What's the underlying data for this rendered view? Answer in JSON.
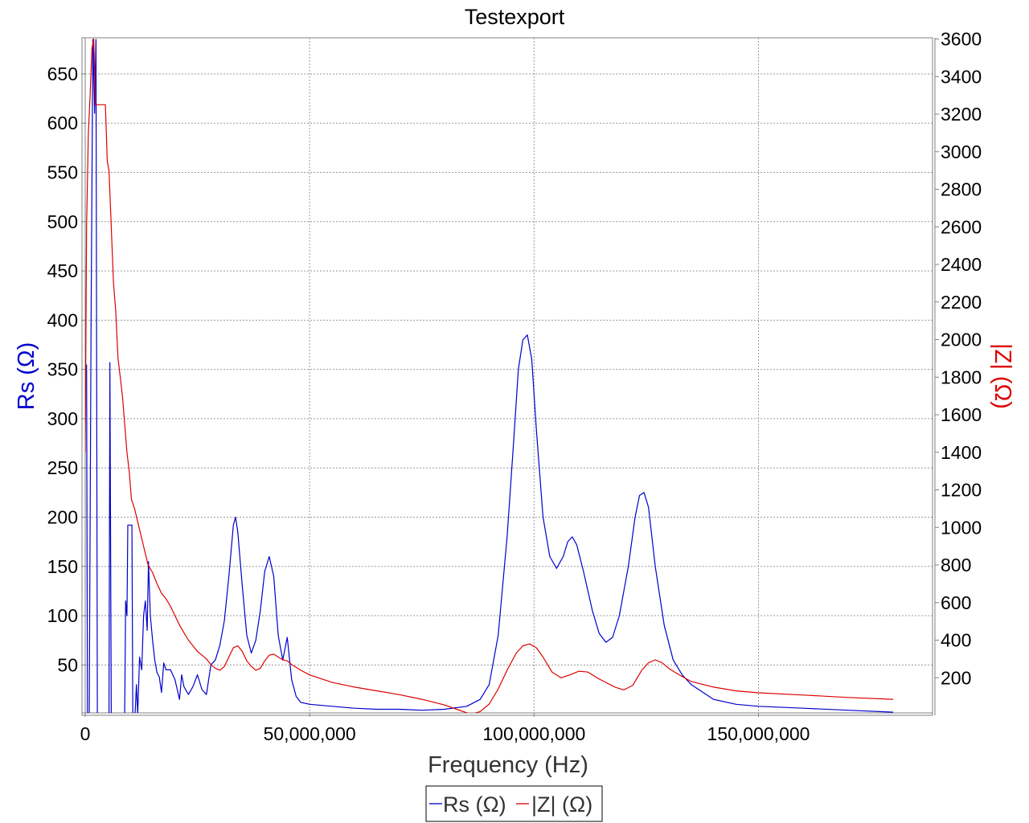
{
  "chart_data": {
    "type": "line",
    "title": "Testexport",
    "xlabel": "Frequency (Hz)",
    "ylabel_left": "Rs (Ω)",
    "ylabel_right": "|Z| (Ω)",
    "xlim": [
      0,
      190000000
    ],
    "ylim_left": [
      0,
      685
    ],
    "ylim_right": [
      0,
      3600
    ],
    "grid": true,
    "legend_position": "bottom-center",
    "x_ticks": [
      0,
      50000000,
      100000000,
      150000000
    ],
    "x_tick_labels": [
      "0",
      "50,000,000",
      "100,000,000",
      "150,000,000"
    ],
    "y_left_ticks": [
      50,
      100,
      150,
      200,
      250,
      300,
      350,
      400,
      450,
      500,
      550,
      600,
      650
    ],
    "y_left_tick_labels": [
      "50",
      "100",
      "150",
      "200",
      "250",
      "300",
      "350",
      "400",
      "450",
      "500",
      "550",
      "600",
      "650"
    ],
    "y_right_ticks": [
      200,
      400,
      600,
      800,
      1000,
      1200,
      1400,
      1600,
      1800,
      2000,
      2200,
      2400,
      2600,
      2800,
      3000,
      3200,
      3400,
      3600
    ],
    "y_right_tick_labels": [
      "200",
      "400",
      "600",
      "800",
      "1000",
      "1200",
      "1400",
      "1600",
      "1800",
      "2000",
      "2200",
      "2400",
      "2600",
      "2800",
      "3000",
      "3200",
      "3400",
      "3600"
    ],
    "series": [
      {
        "name": "Rs (Ω)",
        "axis": "left",
        "color": "#0000cc",
        "points": [
          [
            300000,
            355
          ],
          [
            500000,
            0
          ],
          [
            900000,
            0
          ],
          [
            1300000,
            400
          ],
          [
            1700000,
            685
          ],
          [
            2100000,
            610
          ],
          [
            2400000,
            685
          ],
          [
            2700000,
            0
          ],
          [
            3300000,
            0
          ],
          [
            4500000,
            0
          ],
          [
            5300000,
            0
          ],
          [
            5500000,
            357
          ],
          [
            5800000,
            0
          ],
          [
            8800000,
            0
          ],
          [
            9000000,
            115
          ],
          [
            9300000,
            100
          ],
          [
            9500000,
            192
          ],
          [
            10400000,
            192
          ],
          [
            10600000,
            0
          ],
          [
            11100000,
            0
          ],
          [
            11400000,
            30
          ],
          [
            11700000,
            0
          ],
          [
            12100000,
            58
          ],
          [
            12600000,
            45
          ],
          [
            13000000,
            100
          ],
          [
            13400000,
            115
          ],
          [
            13800000,
            85
          ],
          [
            14100000,
            155
          ],
          [
            14500000,
            100
          ],
          [
            15000000,
            75
          ],
          [
            15500000,
            55
          ],
          [
            16000000,
            42
          ],
          [
            16500000,
            38
          ],
          [
            17000000,
            22
          ],
          [
            17500000,
            52
          ],
          [
            18000000,
            45
          ],
          [
            19000000,
            45
          ],
          [
            20000000,
            35
          ],
          [
            20500000,
            25
          ],
          [
            21000000,
            15
          ],
          [
            21500000,
            40
          ],
          [
            22000000,
            28
          ],
          [
            23000000,
            20
          ],
          [
            24000000,
            28
          ],
          [
            25000000,
            40
          ],
          [
            26000000,
            25
          ],
          [
            27000000,
            20
          ],
          [
            28000000,
            50
          ],
          [
            29000000,
            55
          ],
          [
            30000000,
            70
          ],
          [
            31000000,
            95
          ],
          [
            32000000,
            140
          ],
          [
            33000000,
            192
          ],
          [
            33500000,
            200
          ],
          [
            34000000,
            185
          ],
          [
            35000000,
            130
          ],
          [
            36000000,
            80
          ],
          [
            37000000,
            62
          ],
          [
            38000000,
            75
          ],
          [
            39000000,
            105
          ],
          [
            40000000,
            145
          ],
          [
            41000000,
            160
          ],
          [
            42000000,
            140
          ],
          [
            43000000,
            80
          ],
          [
            44000000,
            55
          ],
          [
            45000000,
            78
          ],
          [
            46000000,
            35
          ],
          [
            47000000,
            18
          ],
          [
            48000000,
            12
          ],
          [
            50000000,
            10
          ],
          [
            55000000,
            8
          ],
          [
            60000000,
            6
          ],
          [
            65000000,
            5
          ],
          [
            70000000,
            5
          ],
          [
            75000000,
            4
          ],
          [
            80000000,
            5
          ],
          [
            85000000,
            8
          ],
          [
            88000000,
            15
          ],
          [
            90000000,
            30
          ],
          [
            92000000,
            80
          ],
          [
            94000000,
            180
          ],
          [
            95500000,
            280
          ],
          [
            96500000,
            350
          ],
          [
            97500000,
            380
          ],
          [
            98500000,
            385
          ],
          [
            99500000,
            360
          ],
          [
            100500000,
            290
          ],
          [
            102000000,
            200
          ],
          [
            103500000,
            160
          ],
          [
            105000000,
            148
          ],
          [
            106500000,
            160
          ],
          [
            107500000,
            175
          ],
          [
            108500000,
            180
          ],
          [
            109500000,
            172
          ],
          [
            111000000,
            145
          ],
          [
            113000000,
            105
          ],
          [
            114500000,
            82
          ],
          [
            116000000,
            73
          ],
          [
            117500000,
            78
          ],
          [
            119000000,
            100
          ],
          [
            121000000,
            150
          ],
          [
            122500000,
            200
          ],
          [
            123500000,
            222
          ],
          [
            124500000,
            225
          ],
          [
            125500000,
            210
          ],
          [
            127000000,
            150
          ],
          [
            129000000,
            90
          ],
          [
            131000000,
            55
          ],
          [
            133000000,
            40
          ],
          [
            135000000,
            30
          ],
          [
            140000000,
            15
          ],
          [
            145000000,
            10
          ],
          [
            150000000,
            8
          ],
          [
            160000000,
            6
          ],
          [
            170000000,
            4
          ],
          [
            180000000,
            2
          ]
        ]
      },
      {
        "name": "|Z| (Ω)",
        "axis": "right",
        "color": "#dd0000",
        "points": [
          [
            0,
            1400
          ],
          [
            300000,
            2600
          ],
          [
            700000,
            3100
          ],
          [
            1100000,
            3300
          ],
          [
            1500000,
            3550
          ],
          [
            1900000,
            3600
          ],
          [
            2300000,
            3250
          ],
          [
            2700000,
            3250
          ],
          [
            4500000,
            3250
          ],
          [
            4900000,
            2950
          ],
          [
            5300000,
            2900
          ],
          [
            5800000,
            2600
          ],
          [
            6300000,
            2300
          ],
          [
            6800000,
            2150
          ],
          [
            7300000,
            1900
          ],
          [
            7800000,
            1800
          ],
          [
            8300000,
            1700
          ],
          [
            8800000,
            1550
          ],
          [
            9300000,
            1400
          ],
          [
            9800000,
            1300
          ],
          [
            10300000,
            1150
          ],
          [
            11000000,
            1100
          ],
          [
            12000000,
            1000
          ],
          [
            13000000,
            900
          ],
          [
            14000000,
            800
          ],
          [
            15000000,
            760
          ],
          [
            16000000,
            700
          ],
          [
            17000000,
            650
          ],
          [
            18000000,
            620
          ],
          [
            19000000,
            580
          ],
          [
            20000000,
            530
          ],
          [
            21000000,
            480
          ],
          [
            22000000,
            440
          ],
          [
            23000000,
            400
          ],
          [
            24000000,
            370
          ],
          [
            25000000,
            340
          ],
          [
            26000000,
            320
          ],
          [
            27000000,
            300
          ],
          [
            28000000,
            270
          ],
          [
            29000000,
            250
          ],
          [
            30000000,
            240
          ],
          [
            31000000,
            260
          ],
          [
            32000000,
            310
          ],
          [
            33000000,
            360
          ],
          [
            34000000,
            370
          ],
          [
            35000000,
            340
          ],
          [
            36000000,
            290
          ],
          [
            37000000,
            260
          ],
          [
            38000000,
            240
          ],
          [
            39000000,
            250
          ],
          [
            40000000,
            290
          ],
          [
            41000000,
            320
          ],
          [
            42000000,
            325
          ],
          [
            43000000,
            310
          ],
          [
            44000000,
            295
          ],
          [
            45000000,
            290
          ],
          [
            46000000,
            270
          ],
          [
            48000000,
            240
          ],
          [
            50000000,
            215
          ],
          [
            55000000,
            175
          ],
          [
            60000000,
            150
          ],
          [
            65000000,
            130
          ],
          [
            70000000,
            110
          ],
          [
            75000000,
            85
          ],
          [
            80000000,
            55
          ],
          [
            83000000,
            30
          ],
          [
            86000000,
            5
          ],
          [
            88000000,
            20
          ],
          [
            90000000,
            60
          ],
          [
            92000000,
            140
          ],
          [
            94000000,
            240
          ],
          [
            96000000,
            330
          ],
          [
            97500000,
            370
          ],
          [
            99000000,
            380
          ],
          [
            100500000,
            360
          ],
          [
            102000000,
            310
          ],
          [
            104000000,
            230
          ],
          [
            106000000,
            200
          ],
          [
            108000000,
            215
          ],
          [
            110000000,
            235
          ],
          [
            112000000,
            230
          ],
          [
            114000000,
            200
          ],
          [
            116000000,
            175
          ],
          [
            118000000,
            150
          ],
          [
            120000000,
            135
          ],
          [
            122000000,
            160
          ],
          [
            124000000,
            240
          ],
          [
            125500000,
            280
          ],
          [
            127000000,
            295
          ],
          [
            128500000,
            280
          ],
          [
            130000000,
            250
          ],
          [
            132000000,
            220
          ],
          [
            135000000,
            180
          ],
          [
            140000000,
            150
          ],
          [
            145000000,
            130
          ],
          [
            150000000,
            120
          ],
          [
            160000000,
            108
          ],
          [
            170000000,
            95
          ],
          [
            180000000,
            85
          ]
        ]
      }
    ]
  }
}
